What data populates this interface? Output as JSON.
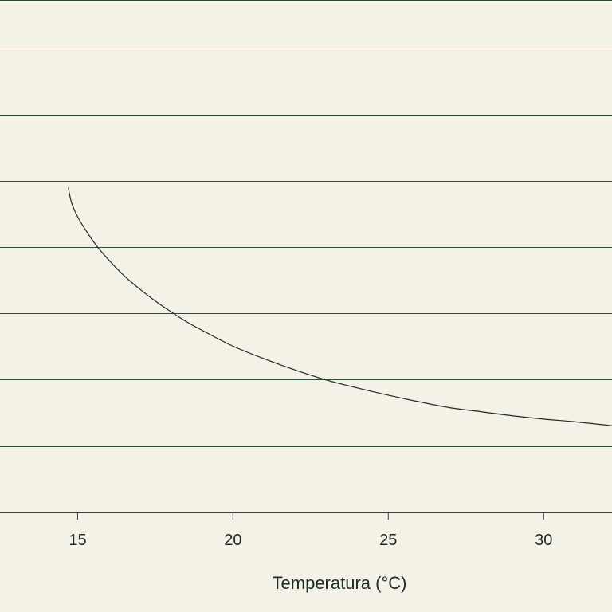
{
  "chart_data": {
    "type": "line",
    "xlabel": "Temperatura (°C)",
    "ylabel": "",
    "title": "",
    "xlim": [
      12.5,
      32.2
    ],
    "x_ticks": [
      15,
      20,
      25,
      30
    ],
    "grid": "horizontal",
    "legend": "none",
    "colors": {
      "background": "#f4f2e6",
      "grid": "#2b4a3a",
      "line": "#1d2b23",
      "text": "#1d2b23"
    },
    "series": [
      {
        "x": [
          14.7,
          14.8,
          15.0,
          15.3,
          15.6,
          16.0,
          16.5,
          17.0,
          17.5,
          18.0,
          18.5,
          19.0,
          20.0,
          21.0,
          22.0,
          23.0,
          24.0,
          25.0,
          26.0,
          27.0,
          28.0,
          29.0,
          30.0,
          31.0,
          32.2
        ],
        "y": [
          6.9,
          6.68,
          6.46,
          6.23,
          6.03,
          5.81,
          5.57,
          5.37,
          5.19,
          5.03,
          4.88,
          4.75,
          4.51,
          4.32,
          4.15,
          4.0,
          3.88,
          3.77,
          3.67,
          3.58,
          3.52,
          3.46,
          3.41,
          3.37,
          3.31
        ]
      }
    ]
  }
}
